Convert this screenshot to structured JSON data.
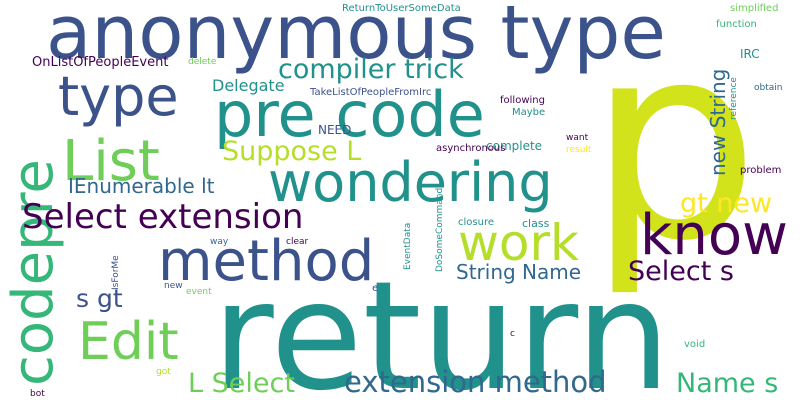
{
  "palette": {
    "dark_purple": "#440154",
    "indigo": "#3b528b",
    "blue": "#31688e",
    "teal": "#21918c",
    "green": "#35b779",
    "light_green": "#6ece58",
    "lime": "#b5de2b",
    "yellow": "#fde725"
  },
  "words": {
    "return": "return",
    "p": "p",
    "anonymous_type": "anonymous type",
    "pre_code": "pre code",
    "codepre": "codepre",
    "wondering": "wondering",
    "type": "type",
    "list": "List",
    "method": "method",
    "know": "know",
    "work": "work",
    "select_extension": "Select extension",
    "edit": "Edit",
    "compiler_trick": "compiler trick",
    "extension_method": "extension method",
    "suppose_l": "Suppose L",
    "select_s": "Select s",
    "l_select": "L Select",
    "name_s": "Name s",
    "gt_new": "gt new",
    "new_string": "new String",
    "s_gt": "s gt",
    "ienumerable_lt": "IEnumerable lt",
    "string_name": "String Name",
    "delegate": "Delegate",
    "onlistofpeopleevent": "OnListOfPeopleEvent",
    "returntousersomedata": "ReturnToUserSomeData",
    "takelistofpeoplefromirc": "TakeListOfPeopleFromIrc",
    "need": "NEED",
    "irc": "IRC",
    "complete": "complete",
    "asynchronous": "asynchronous",
    "class": "class",
    "closure": "closure",
    "following": "following",
    "maybe": "Maybe",
    "delete": "delete",
    "simplified": "simplified",
    "function": "function",
    "obtain": "obtain",
    "reference": "reference",
    "want": "want",
    "result": "result",
    "problem": "problem",
    "dosomecommand": "DoSomeCommand",
    "eventdata": "EventData",
    "clear": "clear",
    "way": "way",
    "isforme": "IsForMe",
    "new": "new",
    "event": "event",
    "e": "e",
    "c": "c",
    "void": "void",
    "got": "got",
    "bot": "bot"
  }
}
